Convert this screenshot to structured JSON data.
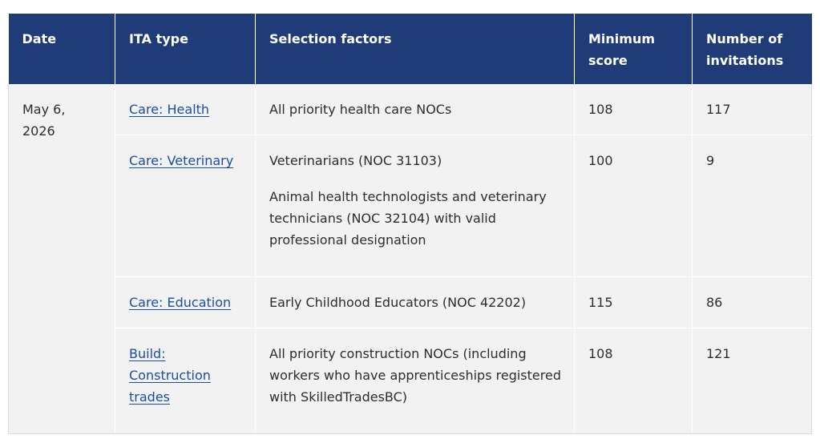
{
  "table": {
    "headers": {
      "date": "Date",
      "ita_type": "ITA type",
      "selection_factors": "Selection factors",
      "minimum_score": "Minimum score",
      "number_of_invitations": "Number of invitations"
    },
    "date_value": "May 6, 2026",
    "rows": [
      {
        "ita_type": "Care: Health",
        "selection_factors": [
          "All priority health care NOCs"
        ],
        "minimum_score": "108",
        "invitations": "117"
      },
      {
        "ita_type": "Care: Veterinary",
        "selection_factors": [
          "Veterinarians (NOC 31103)",
          "Animal health technologists and veterinary technicians (NOC 32104) with valid professional designation"
        ],
        "minimum_score": "100",
        "invitations": "9"
      },
      {
        "ita_type": "Care: Education",
        "selection_factors": [
          "Early Childhood Educators (NOC 42202)"
        ],
        "minimum_score": "115",
        "invitations": "86"
      },
      {
        "ita_type": "Build: Construction trades",
        "selection_factors": [
          "All priority construction NOCs (including workers who have apprenticeships registered with SkilledTradesBC)"
        ],
        "minimum_score": "108",
        "invitations": "121"
      }
    ]
  }
}
